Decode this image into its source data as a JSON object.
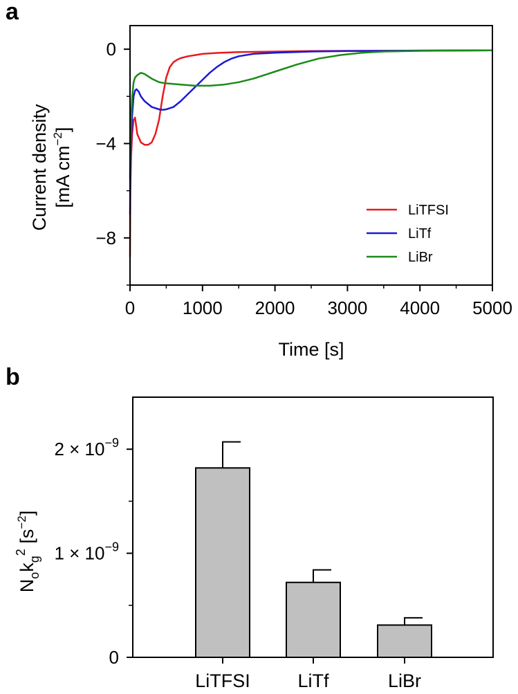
{
  "chart_data": [
    {
      "panel": "a",
      "type": "line",
      "xlabel": "Time [s]",
      "ylabel_line1": "Current density",
      "ylabel_line2_main": "[mA cm",
      "ylabel_line2_sup": "−2",
      "ylabel_line2_end": "]",
      "xlim": [
        0,
        5000
      ],
      "ylim": [
        -10,
        1
      ],
      "xticks": [
        0,
        1000,
        2000,
        3000,
        4000,
        5000
      ],
      "xtick_labels": [
        "0",
        "1000",
        "2000",
        "3000",
        "4000",
        "5000"
      ],
      "yticks": [
        0,
        -4,
        -8
      ],
      "ytick_labels": [
        "0",
        "−4",
        "−8"
      ],
      "legend_position": "lower-right",
      "series": [
        {
          "name": "LiTFSI",
          "color": "#e8191e",
          "x": [
            0,
            5,
            15,
            30,
            50,
            70,
            100,
            150,
            200,
            250,
            300,
            350,
            400,
            450,
            500,
            550,
            600,
            650,
            700,
            800,
            900,
            1000,
            1200,
            1500,
            2000,
            2500,
            3000,
            4000,
            5000
          ],
          "y": [
            -8.8,
            -6.0,
            -4.5,
            -3.6,
            -3.0,
            -2.9,
            -3.6,
            -3.95,
            -4.05,
            -4.05,
            -3.95,
            -3.6,
            -3.0,
            -2.0,
            -1.2,
            -0.75,
            -0.55,
            -0.45,
            -0.38,
            -0.3,
            -0.25,
            -0.2,
            -0.16,
            -0.12,
            -0.1,
            -0.08,
            -0.07,
            -0.06,
            -0.05
          ]
        },
        {
          "name": "LiTf",
          "color": "#1a1ad6",
          "x": [
            0,
            5,
            15,
            30,
            50,
            70,
            90,
            120,
            150,
            200,
            300,
            400,
            450,
            500,
            550,
            600,
            700,
            800,
            900,
            1000,
            1100,
            1200,
            1300,
            1400,
            1500,
            1700,
            2000,
            2500,
            3000,
            3500,
            4000,
            5000
          ],
          "y": [
            -7.0,
            -5.5,
            -4.0,
            -2.8,
            -2.0,
            -1.75,
            -1.7,
            -1.8,
            -2.0,
            -2.2,
            -2.45,
            -2.55,
            -2.57,
            -2.55,
            -2.5,
            -2.45,
            -2.2,
            -1.9,
            -1.6,
            -1.3,
            -1.0,
            -0.75,
            -0.55,
            -0.4,
            -0.3,
            -0.2,
            -0.15,
            -0.1,
            -0.08,
            -0.07,
            -0.06,
            -0.05
          ]
        },
        {
          "name": "LiBr",
          "color": "#1a8a1a",
          "x": [
            0,
            5,
            15,
            30,
            50,
            70,
            100,
            150,
            200,
            300,
            400,
            500,
            700,
            900,
            1000,
            1100,
            1300,
            1500,
            1700,
            2000,
            2300,
            2600,
            2900,
            3200,
            3500,
            4000,
            4500,
            5000
          ],
          "y": [
            -5.5,
            -4.0,
            -3.0,
            -2.0,
            -1.4,
            -1.2,
            -1.1,
            -1.0,
            -1.05,
            -1.25,
            -1.4,
            -1.45,
            -1.5,
            -1.55,
            -1.55,
            -1.55,
            -1.5,
            -1.4,
            -1.25,
            -0.95,
            -0.65,
            -0.4,
            -0.25,
            -0.15,
            -0.1,
            -0.07,
            -0.06,
            -0.05
          ]
        }
      ]
    },
    {
      "panel": "b",
      "type": "bar",
      "categories": [
        "LiTFSI",
        "LiTf",
        "LiBr"
      ],
      "values": [
        1.82e-09,
        7.2e-10,
        3.1e-10
      ],
      "errors": [
        2.5e-10,
        1.2e-10,
        7e-11
      ],
      "bar_color": "#c0c0c0",
      "ylim": [
        0,
        2.5e-09
      ],
      "yticks": [
        0,
        1e-09,
        2e-09
      ],
      "ytick_labels": [
        {
          "mant": "0",
          "exp": ""
        },
        {
          "mant": "1 × 10",
          "exp": "−9"
        },
        {
          "mant": "2 × 10",
          "exp": "−9"
        }
      ],
      "minor_yticks": [
        5e-10,
        1.5e-09
      ],
      "ylabel": {
        "N": "N",
        "sub_o": "o",
        "k": "k",
        "sub_g": "g",
        "sup2": "2",
        "unit_open": " [s",
        "unit_sup": "−2",
        "unit_close": "]"
      }
    }
  ]
}
